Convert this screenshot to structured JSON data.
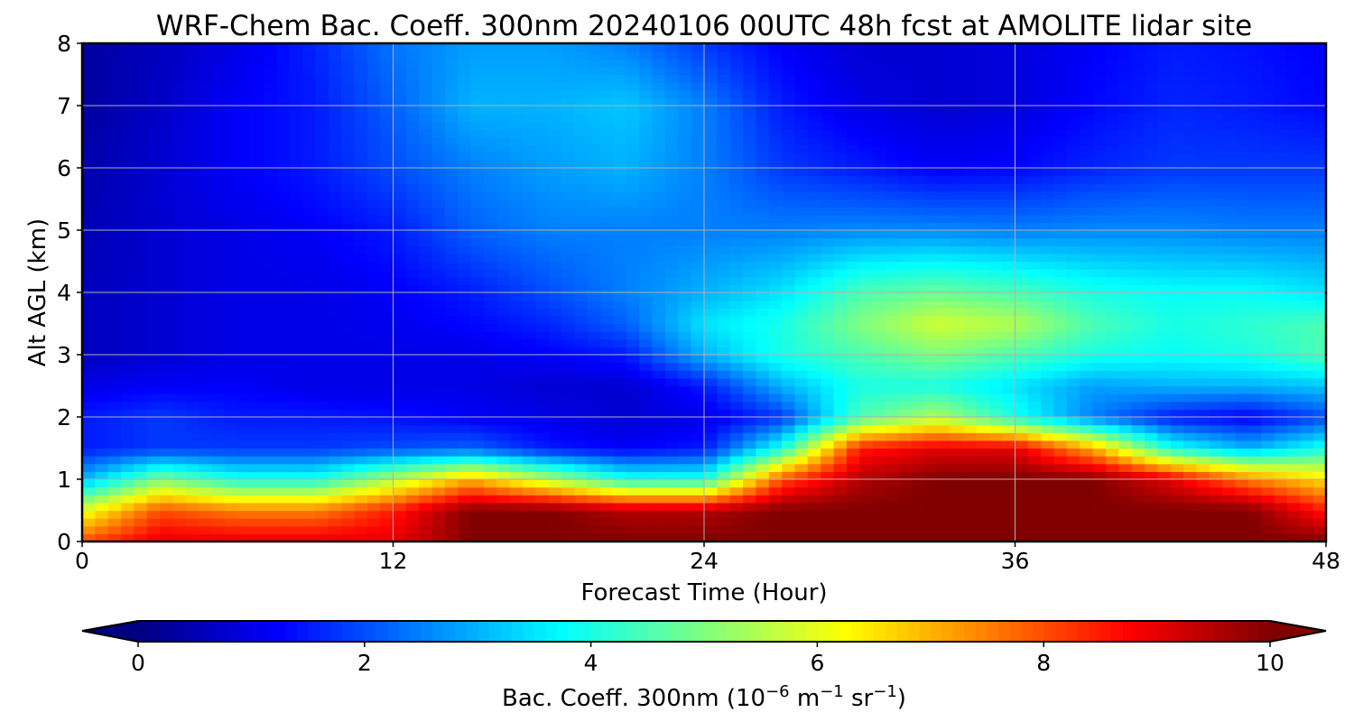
{
  "chart_data": {
    "type": "heatmap",
    "title": "WRF-Chem Bac. Coeff. 300nm  20240106 00UTC 48h fcst at AMOLITE lidar site",
    "xlabel": "Forecast Time (Hour)",
    "ylabel": "Alt AGL (km)",
    "xlim": [
      0,
      48
    ],
    "ylim": [
      0,
      8
    ],
    "xticks": [
      "0",
      "12",
      "24",
      "36",
      "48"
    ],
    "yticks": [
      "0",
      "1",
      "2",
      "3",
      "4",
      "5",
      "6",
      "7",
      "8"
    ],
    "grid": true,
    "colormap": "jet",
    "colorbar": {
      "label_main": "Bac. Coeff. 300nm  (10",
      "label_exp1": "−6",
      "label_mid": " m",
      "label_exp2": "−1",
      "label_mid2": " sr",
      "label_exp3": "−1",
      "label_end": ")",
      "range": [
        0,
        10
      ],
      "extend": "both",
      "ticks": [
        "0",
        "2",
        "4",
        "6",
        "8",
        "10"
      ]
    },
    "x": [
      0,
      3,
      6,
      9,
      12,
      15,
      18,
      21,
      24,
      27,
      30,
      33,
      36,
      39,
      42,
      45,
      48
    ],
    "y": [
      0,
      0.5,
      1,
      1.5,
      2,
      2.5,
      3,
      3.5,
      4,
      5,
      6,
      7,
      8
    ],
    "z": [
      [
        8,
        9,
        9,
        9,
        9,
        10,
        10,
        10,
        10,
        10,
        10,
        10,
        10,
        10,
        10,
        10,
        10
      ],
      [
        6,
        8,
        7.5,
        7.5,
        8.5,
        10,
        10,
        9.5,
        9.5,
        10,
        10,
        10,
        10,
        10,
        10,
        10,
        8.5
      ],
      [
        3,
        5,
        4,
        4,
        5.5,
        7,
        5.5,
        4,
        4,
        8,
        9.5,
        10,
        10,
        10,
        9,
        7.5,
        6.5
      ],
      [
        1.5,
        1.8,
        1.8,
        1.8,
        2,
        2.2,
        1.5,
        1.2,
        1.5,
        4,
        8.5,
        9,
        9,
        7,
        4,
        3,
        4
      ],
      [
        1.5,
        1.8,
        1.5,
        1.5,
        1.4,
        1.2,
        1.0,
        0.8,
        1.0,
        1.8,
        4.5,
        5.5,
        4,
        2.5,
        1.5,
        1.2,
        2.0
      ],
      [
        1.0,
        1.2,
        1.2,
        1.0,
        1.0,
        1.0,
        0.8,
        0.8,
        1.5,
        3,
        4,
        4,
        3.5,
        2.8,
        3,
        3,
        3.2
      ],
      [
        0.6,
        0.8,
        1.0,
        1.0,
        1.0,
        1.0,
        1.2,
        1.5,
        3,
        4,
        4.5,
        5,
        4.5,
        4,
        3.8,
        4,
        4.5
      ],
      [
        0.6,
        0.8,
        1.0,
        1.0,
        1.1,
        1.3,
        1.6,
        2.2,
        3.5,
        4,
        5,
        5.8,
        5.5,
        4.5,
        4,
        4.2,
        4.5
      ],
      [
        0.6,
        0.8,
        1.0,
        1.0,
        1.2,
        1.5,
        2.0,
        2.5,
        3,
        3.5,
        4.5,
        4.8,
        4.5,
        4,
        3.8,
        3.8,
        3.5
      ],
      [
        0.5,
        0.8,
        1.0,
        1.2,
        1.5,
        2.2,
        2.5,
        2.5,
        2.5,
        2.5,
        2.6,
        2.6,
        2.5,
        2.6,
        2.6,
        2.5,
        2.5
      ],
      [
        0.4,
        0.8,
        1.2,
        1.5,
        2,
        2.5,
        2.8,
        3,
        2.5,
        1.8,
        1.5,
        1.2,
        1.3,
        1.6,
        1.8,
        1.8,
        1.8
      ],
      [
        0.3,
        0.7,
        1.2,
        1.5,
        2.2,
        3,
        3,
        3.2,
        2.5,
        1.5,
        1.0,
        0.8,
        0.9,
        1.3,
        1.6,
        1.5,
        1.3
      ],
      [
        0.3,
        0.6,
        1.0,
        1.6,
        2.4,
        2.8,
        2.8,
        2.5,
        1.8,
        1.2,
        0.8,
        0.8,
        0.9,
        1.2,
        1.5,
        1.4,
        1.2
      ]
    ]
  }
}
